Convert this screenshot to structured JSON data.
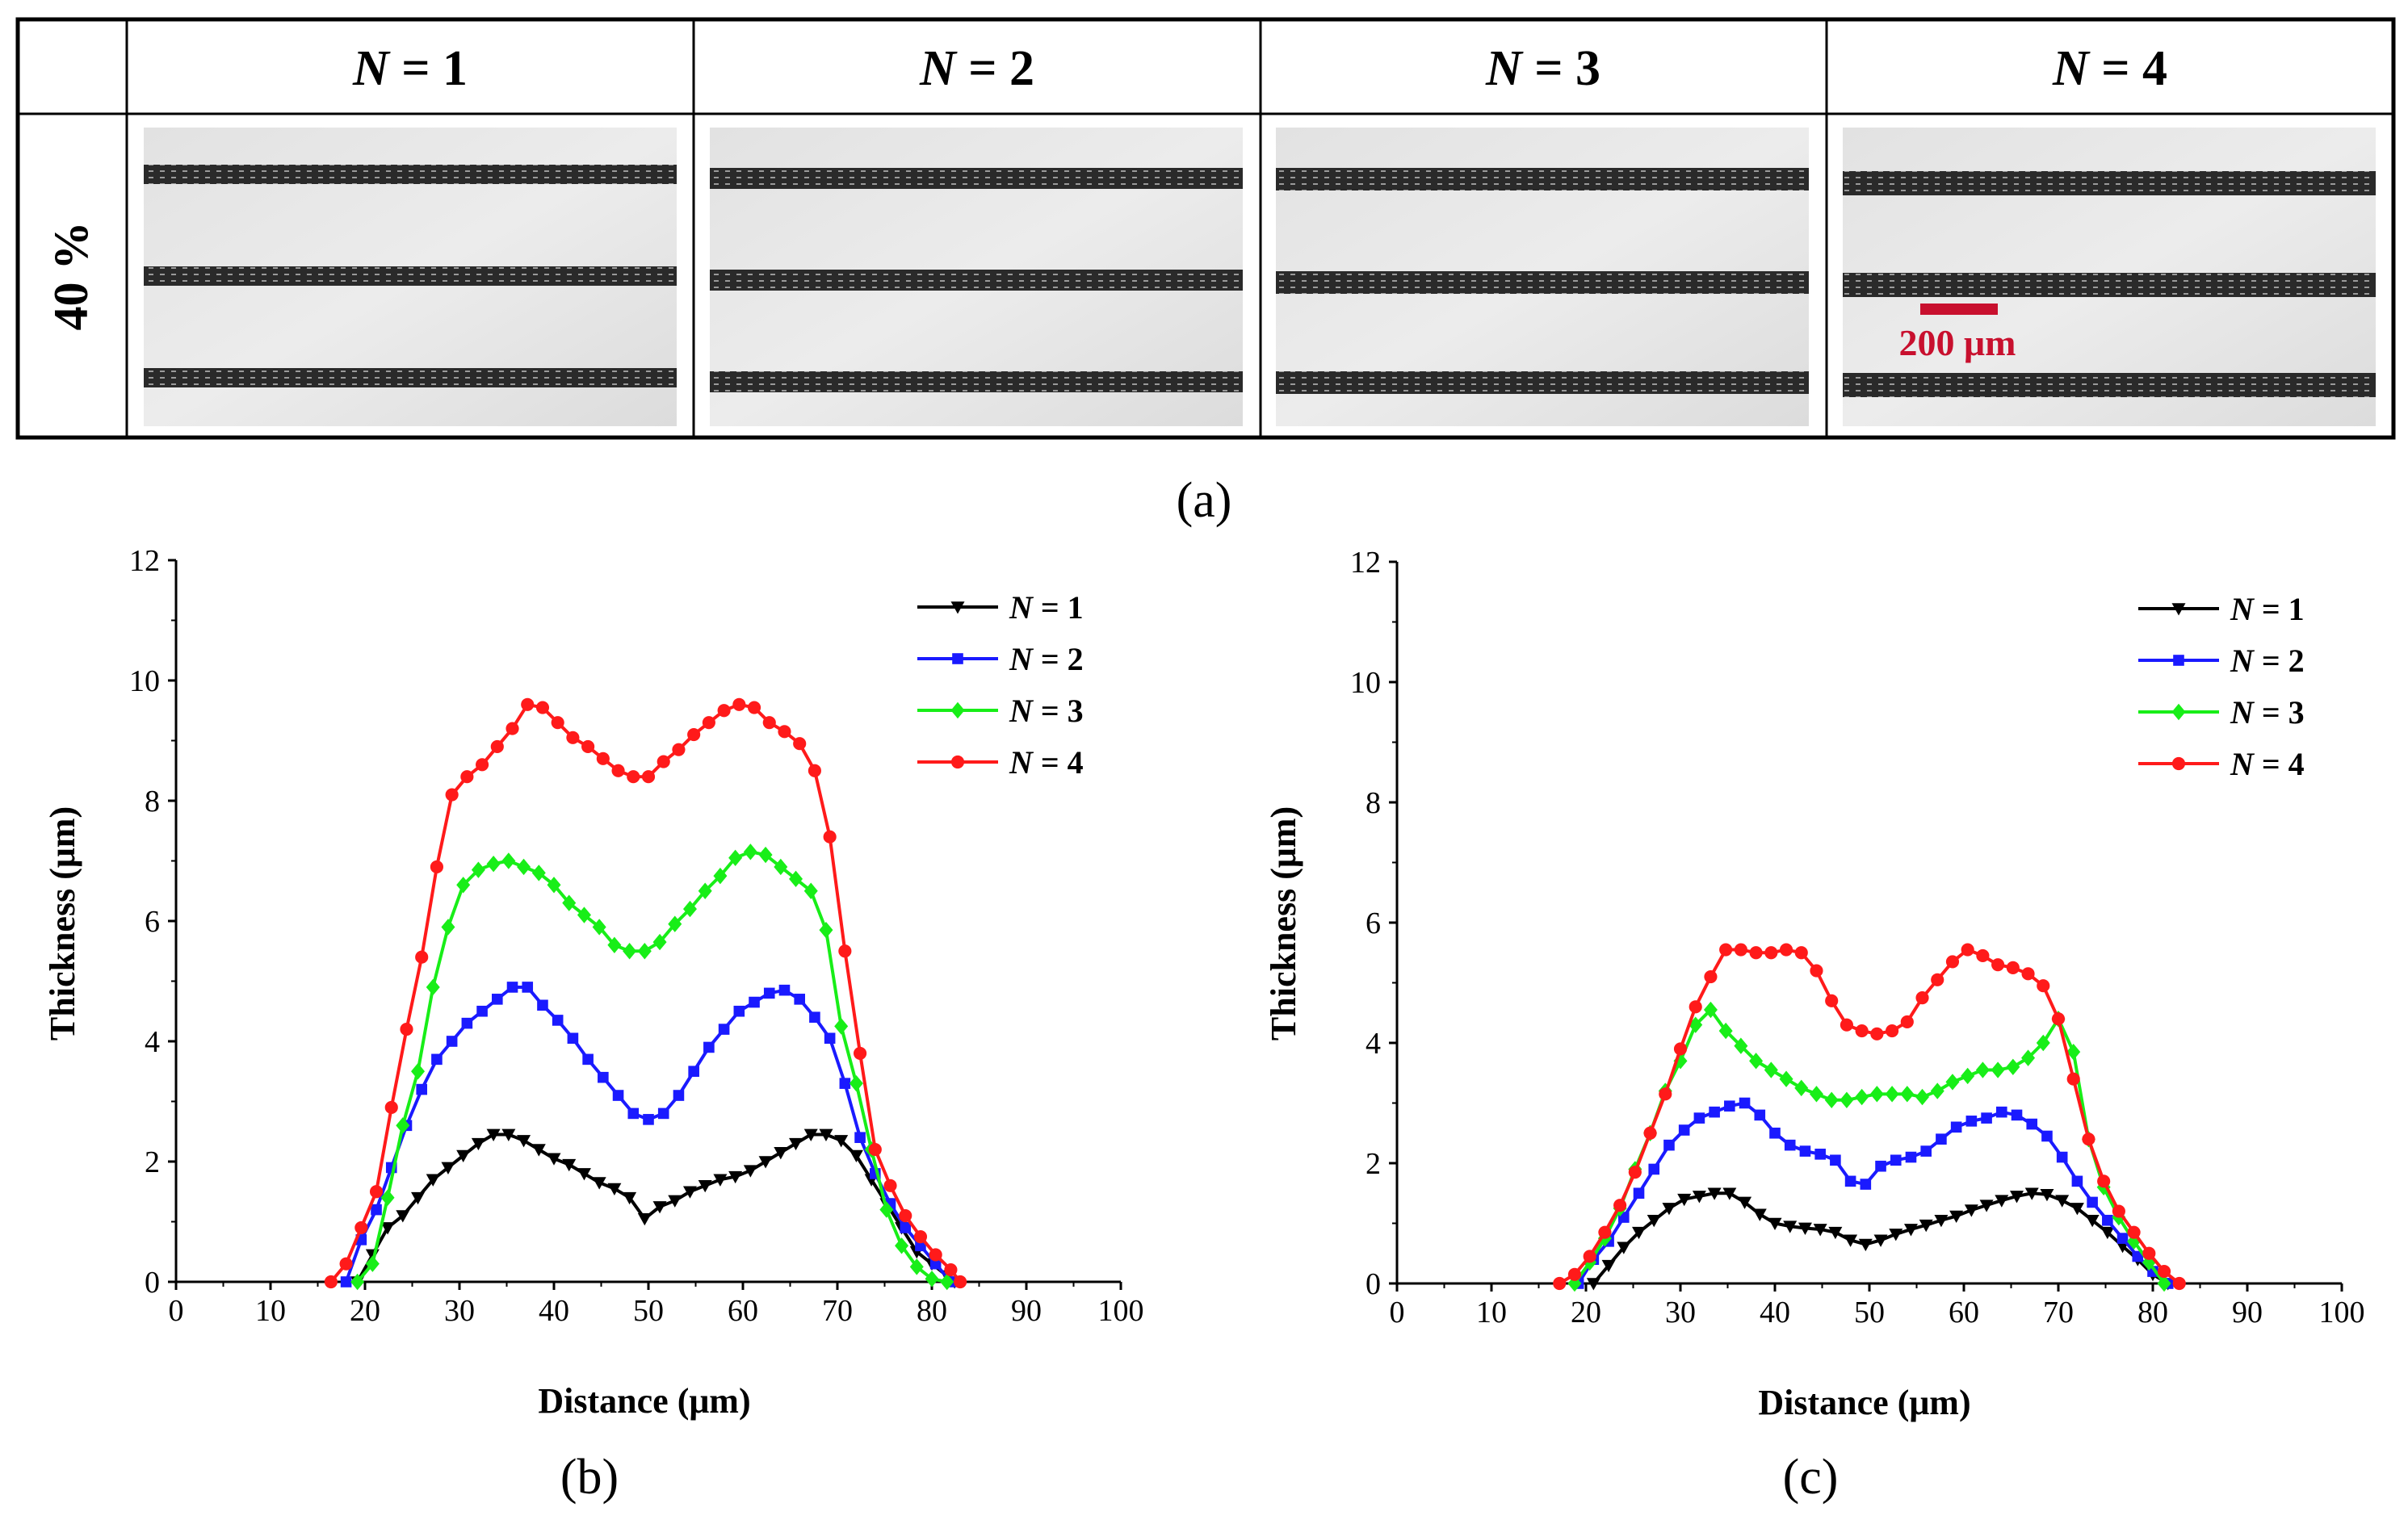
{
  "table": {
    "row_label": "40 %",
    "columns": [
      {
        "var": "N",
        "eq": " = 1"
      },
      {
        "var": "N",
        "eq": " = 2"
      },
      {
        "var": "N",
        "eq": " = 3"
      },
      {
        "var": "N",
        "eq": " = 4"
      }
    ],
    "scale_bar_label": "200 μm",
    "scale_bar_color": "#c8102e"
  },
  "panel_labels": {
    "a": "(a)",
    "b": "(b)",
    "c": "(c)"
  },
  "chart_data": [
    {
      "type": "line",
      "panel": "(b)",
      "xlabel": "Distance (μm)",
      "ylabel": "Thickness (μm)",
      "xlim": [
        0,
        100
      ],
      "ylim": [
        0,
        12
      ],
      "xticks": [
        "0",
        "10",
        "20",
        "30",
        "40",
        "50",
        "60",
        "70",
        "80",
        "90",
        "100"
      ],
      "yticks": [
        "0",
        "2",
        "4",
        "6",
        "8",
        "10",
        "12"
      ],
      "legend_position": "top-right",
      "series": [
        {
          "name": "N = 1",
          "color": "#000000",
          "marker": "triangle-down",
          "x": [
            19.2,
            20.8,
            22.4,
            24.0,
            25.6,
            27.2,
            28.8,
            30.4,
            32.0,
            33.6,
            35.2,
            36.8,
            38.4,
            40.0,
            41.6,
            43.2,
            44.8,
            46.4,
            48.0,
            49.6,
            51.2,
            52.8,
            54.4,
            56.0,
            57.6,
            59.2,
            60.8,
            62.4,
            64.0,
            65.6,
            67.2,
            68.8,
            70.4,
            72.0,
            73.6,
            75.2,
            76.8,
            78.4,
            80.0,
            81.6,
            82.4
          ],
          "y": [
            0,
            0.45,
            0.9,
            1.1,
            1.4,
            1.7,
            1.9,
            2.1,
            2.3,
            2.45,
            2.45,
            2.35,
            2.2,
            2.05,
            1.95,
            1.8,
            1.65,
            1.55,
            1.4,
            1.05,
            1.25,
            1.35,
            1.5,
            1.6,
            1.7,
            1.75,
            1.85,
            2.0,
            2.15,
            2.3,
            2.45,
            2.45,
            2.35,
            2.1,
            1.7,
            1.3,
            0.9,
            0.5,
            0.3,
            0.1,
            0
          ]
        },
        {
          "name": "N = 2",
          "color": "#1a1aff",
          "marker": "square",
          "x": [
            18.0,
            19.6,
            21.2,
            22.8,
            24.4,
            26.0,
            27.6,
            29.2,
            30.8,
            32.4,
            34.0,
            35.6,
            37.2,
            38.8,
            40.4,
            42.0,
            43.6,
            45.2,
            46.8,
            48.4,
            50.0,
            51.6,
            53.2,
            54.8,
            56.4,
            58.0,
            59.6,
            61.2,
            62.8,
            64.4,
            66.0,
            67.6,
            69.2,
            70.8,
            72.4,
            74.0,
            75.6,
            77.2,
            78.8,
            80.4,
            82.0
          ],
          "y": [
            0,
            0.7,
            1.2,
            1.9,
            2.6,
            3.2,
            3.7,
            4.0,
            4.3,
            4.5,
            4.7,
            4.9,
            4.9,
            4.6,
            4.35,
            4.05,
            3.7,
            3.4,
            3.1,
            2.8,
            2.7,
            2.8,
            3.1,
            3.5,
            3.9,
            4.2,
            4.5,
            4.65,
            4.8,
            4.85,
            4.7,
            4.4,
            4.05,
            3.3,
            2.4,
            1.8,
            1.3,
            0.9,
            0.6,
            0.3,
            0
          ]
        },
        {
          "name": "N = 3",
          "color": "#18ee18",
          "marker": "diamond",
          "x": [
            19.2,
            20.8,
            22.4,
            24.0,
            25.6,
            27.2,
            28.8,
            30.4,
            32.0,
            33.6,
            35.2,
            36.8,
            38.4,
            40.0,
            41.6,
            43.2,
            44.8,
            46.4,
            48.0,
            49.6,
            51.2,
            52.8,
            54.4,
            56.0,
            57.6,
            59.2,
            60.8,
            62.4,
            64.0,
            65.6,
            67.2,
            68.8,
            70.4,
            72.0,
            73.6,
            75.2,
            76.8,
            78.4,
            80.0,
            81.6
          ],
          "y": [
            0,
            0.3,
            1.4,
            2.6,
            3.5,
            4.9,
            5.9,
            6.6,
            6.85,
            6.95,
            7.0,
            6.9,
            6.8,
            6.6,
            6.3,
            6.1,
            5.9,
            5.6,
            5.5,
            5.5,
            5.65,
            5.95,
            6.2,
            6.5,
            6.75,
            7.05,
            7.15,
            7.1,
            6.9,
            6.7,
            6.5,
            5.85,
            4.25,
            3.3,
            2.2,
            1.2,
            0.6,
            0.25,
            0.05,
            0
          ]
        },
        {
          "name": "N = 4",
          "color": "#ff1a1a",
          "marker": "circle",
          "x": [
            16.4,
            18.0,
            19.6,
            21.2,
            22.8,
            24.4,
            26.0,
            27.6,
            29.2,
            30.8,
            32.4,
            34.0,
            35.6,
            37.2,
            38.8,
            40.4,
            42.0,
            43.6,
            45.2,
            46.8,
            48.4,
            50.0,
            51.6,
            53.2,
            54.8,
            56.4,
            58.0,
            59.6,
            61.2,
            62.8,
            64.4,
            66.0,
            67.6,
            69.2,
            70.8,
            72.4,
            74.0,
            75.6,
            77.2,
            78.8,
            80.4,
            82.0,
            83.0
          ],
          "y": [
            0,
            0.3,
            0.9,
            1.5,
            2.9,
            4.2,
            5.4,
            6.9,
            8.1,
            8.4,
            8.6,
            8.9,
            9.2,
            9.6,
            9.55,
            9.3,
            9.05,
            8.9,
            8.7,
            8.5,
            8.4,
            8.4,
            8.65,
            8.85,
            9.1,
            9.3,
            9.5,
            9.6,
            9.55,
            9.3,
            9.15,
            8.95,
            8.5,
            7.4,
            5.5,
            3.8,
            2.2,
            1.6,
            1.1,
            0.75,
            0.45,
            0.2,
            0
          ]
        }
      ]
    },
    {
      "type": "line",
      "panel": "(c)",
      "xlabel": "Distance (μm)",
      "ylabel": "Thickness (μm)",
      "xlim": [
        0,
        100
      ],
      "ylim": [
        0,
        12
      ],
      "xticks": [
        "0",
        "10",
        "20",
        "30",
        "40",
        "50",
        "60",
        "70",
        "80",
        "90",
        "100"
      ],
      "yticks": [
        "0",
        "2",
        "4",
        "6",
        "8",
        "10",
        "12"
      ],
      "legend_position": "top-right",
      "series": [
        {
          "name": "N = 1",
          "color": "#000000",
          "marker": "triangle-down",
          "x": [
            20.8,
            22.4,
            24.0,
            25.6,
            27.2,
            28.8,
            30.4,
            32.0,
            33.6,
            35.2,
            36.8,
            38.4,
            40.0,
            41.6,
            43.2,
            44.8,
            46.4,
            48.0,
            49.6,
            51.2,
            52.8,
            54.4,
            56.0,
            57.6,
            59.2,
            60.8,
            62.4,
            64.0,
            65.6,
            67.2,
            68.8,
            70.4,
            72.0,
            73.6,
            75.2,
            76.8,
            78.4,
            80.0,
            81.6
          ],
          "y": [
            0,
            0.3,
            0.6,
            0.85,
            1.05,
            1.25,
            1.4,
            1.45,
            1.5,
            1.5,
            1.35,
            1.15,
            1.0,
            0.95,
            0.92,
            0.9,
            0.85,
            0.72,
            0.65,
            0.72,
            0.82,
            0.9,
            0.97,
            1.05,
            1.12,
            1.22,
            1.3,
            1.38,
            1.45,
            1.5,
            1.48,
            1.38,
            1.25,
            1.05,
            0.85,
            0.62,
            0.4,
            0.15,
            0
          ]
        },
        {
          "name": "N = 2",
          "color": "#1a1aff",
          "marker": "square",
          "x": [
            19.2,
            20.8,
            22.4,
            24.0,
            25.6,
            27.2,
            28.8,
            30.4,
            32.0,
            33.6,
            35.2,
            36.8,
            38.4,
            40.0,
            41.6,
            43.2,
            44.8,
            46.4,
            48.0,
            49.6,
            51.2,
            52.8,
            54.4,
            56.0,
            57.6,
            59.2,
            60.8,
            62.4,
            64.0,
            65.6,
            67.2,
            68.8,
            70.4,
            72.0,
            73.6,
            75.2,
            76.8,
            78.4,
            80.0,
            81.6
          ],
          "y": [
            0,
            0.4,
            0.7,
            1.1,
            1.5,
            1.9,
            2.3,
            2.55,
            2.75,
            2.85,
            2.95,
            3.0,
            2.8,
            2.5,
            2.3,
            2.2,
            2.15,
            2.05,
            1.7,
            1.65,
            1.95,
            2.05,
            2.1,
            2.2,
            2.4,
            2.6,
            2.7,
            2.75,
            2.85,
            2.8,
            2.65,
            2.45,
            2.1,
            1.7,
            1.35,
            1.05,
            0.75,
            0.45,
            0.2,
            0
          ]
        },
        {
          "name": "N = 3",
          "color": "#18ee18",
          "marker": "diamond",
          "x": [
            18.8,
            20.4,
            22.0,
            23.6,
            25.2,
            26.8,
            28.4,
            30.0,
            31.6,
            33.2,
            34.8,
            36.4,
            38.0,
            39.6,
            41.2,
            42.8,
            44.4,
            46.0,
            47.6,
            49.2,
            50.8,
            52.4,
            54.0,
            55.6,
            57.2,
            58.8,
            60.4,
            62.0,
            63.6,
            65.2,
            66.8,
            68.4,
            70.0,
            71.6,
            73.2,
            74.8,
            76.4,
            78.0,
            79.6,
            81.2
          ],
          "y": [
            0,
            0.35,
            0.75,
            1.25,
            1.9,
            2.5,
            3.2,
            3.7,
            4.3,
            4.55,
            4.2,
            3.95,
            3.7,
            3.55,
            3.4,
            3.25,
            3.15,
            3.05,
            3.05,
            3.1,
            3.15,
            3.15,
            3.15,
            3.1,
            3.2,
            3.35,
            3.45,
            3.55,
            3.55,
            3.6,
            3.75,
            4.0,
            4.4,
            3.85,
            2.4,
            1.6,
            1.1,
            0.7,
            0.35,
            0
          ]
        },
        {
          "name": "N = 4",
          "color": "#ff1a1a",
          "marker": "circle",
          "x": [
            17.2,
            18.8,
            20.4,
            22.0,
            23.6,
            25.2,
            26.8,
            28.4,
            30.0,
            31.6,
            33.2,
            34.8,
            36.4,
            38.0,
            39.6,
            41.2,
            42.8,
            44.4,
            46.0,
            47.6,
            49.2,
            50.8,
            52.4,
            54.0,
            55.6,
            57.2,
            58.8,
            60.4,
            62.0,
            63.6,
            65.2,
            66.8,
            68.4,
            70.0,
            71.6,
            73.2,
            74.8,
            76.4,
            78.0,
            79.6,
            81.2,
            82.8
          ],
          "y": [
            0,
            0.15,
            0.45,
            0.85,
            1.3,
            1.85,
            2.5,
            3.15,
            3.9,
            4.6,
            5.1,
            5.55,
            5.55,
            5.5,
            5.5,
            5.55,
            5.5,
            5.2,
            4.7,
            4.3,
            4.2,
            4.15,
            4.2,
            4.35,
            4.75,
            5.05,
            5.35,
            5.55,
            5.45,
            5.3,
            5.25,
            5.15,
            4.95,
            4.4,
            3.4,
            2.4,
            1.7,
            1.2,
            0.85,
            0.5,
            0.2,
            0
          ]
        }
      ]
    }
  ]
}
